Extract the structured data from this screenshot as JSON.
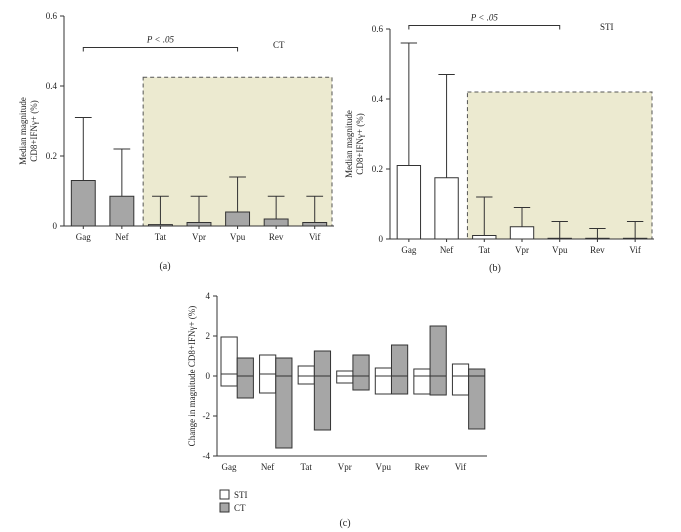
{
  "chart_data": [
    {
      "id": "a",
      "type": "bar",
      "panel_label": "(a)",
      "legend_text": "CT",
      "ylabel_lines": [
        "Median magnitude",
        "CD8+IFNγ+ (%)"
      ],
      "ylim": [
        0,
        0.6
      ],
      "yticks": [
        0,
        0.2,
        0.4,
        0.6
      ],
      "ytick_labels": [
        "0",
        "0.2",
        "0.4",
        "0.6"
      ],
      "categories": [
        "Gag",
        "Nef",
        "Tat",
        "Vpr",
        "Vpu",
        "Rev",
        "Vif"
      ],
      "values": [
        0.13,
        0.085,
        0.004,
        0.01,
        0.04,
        0.02,
        0.01
      ],
      "error_upper": [
        0.31,
        0.22,
        0.085,
        0.085,
        0.14,
        0.085,
        0.085
      ],
      "bar_fill": "#a6a6a6",
      "highlight_region": {
        "from_category": "Tat",
        "to_category": "Vif",
        "fill": "#ecead0",
        "y_top": 0.425
      },
      "significance": {
        "text": "P < .05",
        "from": "Gag",
        "to": "Vpu",
        "y": 0.51
      }
    },
    {
      "id": "b",
      "type": "bar",
      "panel_label": "(b)",
      "legend_text": "STI",
      "ylabel_lines": [
        "Median magnitude",
        "CD8+IFNγ+ (%)"
      ],
      "ylim": [
        0,
        0.6
      ],
      "yticks": [
        0,
        0.2,
        0.4,
        0.6
      ],
      "ytick_labels": [
        "0",
        "0.2",
        "0.4",
        "0.6"
      ],
      "categories": [
        "Gag",
        "Nef",
        "Tat",
        "Vpr",
        "Vpu",
        "Rev",
        "Vif"
      ],
      "values": [
        0.21,
        0.175,
        0.01,
        0.035,
        0.002,
        0.002,
        0.002
      ],
      "error_upper": [
        0.56,
        0.47,
        0.12,
        0.09,
        0.05,
        0.03,
        0.05
      ],
      "bar_fill": "#ffffff",
      "highlight_region": {
        "from_category": "Tat",
        "to_category": "Vif",
        "fill": "#ecead0",
        "y_top": 0.42
      },
      "significance": {
        "text": "P < .05",
        "from": "Gag",
        "to": "Vpu",
        "y": 0.61
      }
    },
    {
      "id": "c",
      "type": "floating-bar",
      "panel_label": "(c)",
      "ylabel": "Change in magnitude CD8+IFNγ+ (%)",
      "ylim": [
        -4,
        4
      ],
      "yticks": [
        -4,
        -2,
        0,
        2,
        4
      ],
      "ytick_labels": [
        "-4",
        "-2",
        "0",
        "2",
        "4"
      ],
      "categories": [
        "Gag",
        "Nef",
        "Tat",
        "Vpr",
        "Vpu",
        "Rev",
        "Vif"
      ],
      "series": [
        {
          "name": "STI",
          "fill": "#ffffff",
          "low": [
            -0.5,
            -0.85,
            -0.4,
            -0.35,
            -0.9,
            -0.9,
            -0.95
          ],
          "high": [
            1.95,
            1.05,
            0.5,
            0.25,
            0.4,
            0.35,
            0.6
          ],
          "median": [
            0.1,
            0.1,
            0.0,
            0.0,
            0.0,
            0.0,
            0.0
          ]
        },
        {
          "name": "CT",
          "fill": "#a6a6a6",
          "low": [
            -1.1,
            -3.6,
            -2.7,
            -0.7,
            -0.9,
            -0.95,
            -2.65
          ],
          "high": [
            0.9,
            0.9,
            1.25,
            1.05,
            1.55,
            2.5,
            0.35
          ],
          "median": [
            0.0,
            0.0,
            0.0,
            0.0,
            0.0,
            0.0,
            0.0
          ]
        }
      ],
      "legend": [
        {
          "label": "STI",
          "fill": "#ffffff"
        },
        {
          "label": "CT",
          "fill": "#a6a6a6"
        }
      ]
    }
  ]
}
